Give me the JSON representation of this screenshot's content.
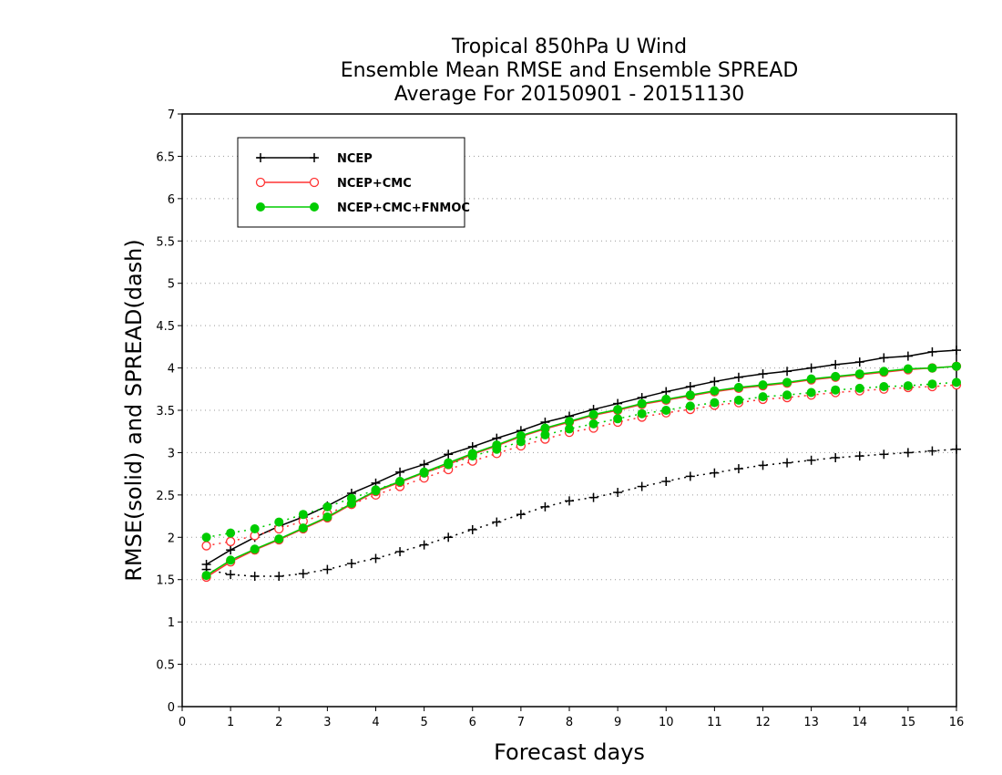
{
  "chart_data": {
    "type": "line",
    "title_lines": [
      "Tropical 850hPa U Wind",
      "Ensemble Mean RMSE and Ensemble SPREAD",
      "Average For 20150901 - 20151130"
    ],
    "xlabel": "Forecast days",
    "ylabel": "RMSE(solid) and SPREAD(dash)",
    "xlim": [
      0,
      16
    ],
    "ylim": [
      0,
      7
    ],
    "xticks": [
      0,
      1,
      2,
      3,
      4,
      5,
      6,
      7,
      8,
      9,
      10,
      11,
      12,
      13,
      14,
      15,
      16
    ],
    "yticks": [
      0,
      0.5,
      1,
      1.5,
      2,
      2.5,
      3,
      3.5,
      4,
      4.5,
      5,
      5.5,
      6,
      6.5,
      7
    ],
    "ytick_labels": [
      "0",
      "0.5",
      "1",
      "1.5",
      "2",
      "2.5",
      "3",
      "3.5",
      "4",
      "4.5",
      "5",
      "5.5",
      "6",
      "6.5",
      "7"
    ],
    "grid": "horizontal dotted",
    "legend_position": "top-left",
    "x": [
      0.5,
      1,
      1.5,
      2,
      2.5,
      3,
      3.5,
      4,
      4.5,
      5,
      5.5,
      6,
      6.5,
      7,
      7.5,
      8,
      8.5,
      9,
      9.5,
      10,
      10.5,
      11,
      11.5,
      12,
      12.5,
      13,
      13.5,
      14,
      14.5,
      15,
      15.5,
      16
    ],
    "series": [
      {
        "name": "NCEP",
        "color": "#000000",
        "marker": "plus",
        "rmse": [
          1.68,
          1.85,
          2.0,
          2.13,
          2.24,
          2.37,
          2.52,
          2.64,
          2.77,
          2.86,
          2.98,
          3.07,
          3.17,
          3.26,
          3.36,
          3.43,
          3.51,
          3.58,
          3.65,
          3.72,
          3.78,
          3.84,
          3.89,
          3.93,
          3.96,
          4.0,
          4.04,
          4.07,
          4.12,
          4.14,
          4.19,
          4.21
        ],
        "spread": [
          1.62,
          1.56,
          1.54,
          1.54,
          1.57,
          1.62,
          1.69,
          1.75,
          1.83,
          1.91,
          2.0,
          2.09,
          2.18,
          2.27,
          2.36,
          2.43,
          2.47,
          2.53,
          2.6,
          2.66,
          2.72,
          2.76,
          2.81,
          2.85,
          2.88,
          2.91,
          2.94,
          2.96,
          2.98,
          3.0,
          3.02,
          3.04
        ]
      },
      {
        "name": "NCEP+CMC",
        "color": "#ff3333",
        "marker": "open-circle",
        "rmse": [
          1.53,
          1.71,
          1.85,
          1.97,
          2.1,
          2.23,
          2.39,
          2.54,
          2.65,
          2.76,
          2.86,
          2.98,
          3.08,
          3.19,
          3.28,
          3.36,
          3.44,
          3.5,
          3.57,
          3.62,
          3.67,
          3.72,
          3.76,
          3.79,
          3.82,
          3.86,
          3.89,
          3.92,
          3.95,
          3.98,
          4.0,
          4.02
        ],
        "spread": [
          1.9,
          1.95,
          2.02,
          2.1,
          2.19,
          2.28,
          2.39,
          2.5,
          2.6,
          2.7,
          2.8,
          2.9,
          2.99,
          3.08,
          3.16,
          3.24,
          3.29,
          3.36,
          3.42,
          3.47,
          3.51,
          3.56,
          3.59,
          3.63,
          3.65,
          3.68,
          3.71,
          3.73,
          3.75,
          3.77,
          3.78,
          3.8
        ]
      },
      {
        "name": "NCEP+CMC+FNMOC",
        "color": "#00cc00",
        "marker": "filled-circle",
        "rmse": [
          1.55,
          1.73,
          1.86,
          1.98,
          2.11,
          2.24,
          2.4,
          2.55,
          2.66,
          2.77,
          2.88,
          2.99,
          3.09,
          3.2,
          3.29,
          3.37,
          3.45,
          3.51,
          3.58,
          3.63,
          3.68,
          3.73,
          3.77,
          3.8,
          3.83,
          3.87,
          3.9,
          3.93,
          3.96,
          3.99,
          4.0,
          4.02
        ],
        "spread": [
          2.0,
          2.05,
          2.1,
          2.18,
          2.27,
          2.36,
          2.46,
          2.56,
          2.66,
          2.76,
          2.86,
          2.96,
          3.04,
          3.13,
          3.21,
          3.28,
          3.34,
          3.4,
          3.46,
          3.5,
          3.55,
          3.59,
          3.62,
          3.66,
          3.68,
          3.71,
          3.74,
          3.76,
          3.78,
          3.79,
          3.81,
          3.83
        ]
      }
    ]
  }
}
